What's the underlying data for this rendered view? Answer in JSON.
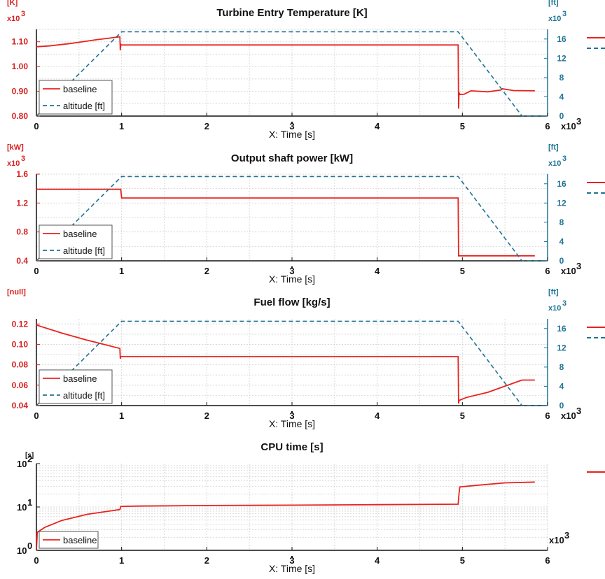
{
  "colors": {
    "baseline": "#e8221e",
    "altitude": "#1f7494",
    "grid": "#d9d9d9",
    "axis": "#111111"
  },
  "chart_data": [
    {
      "type": "line",
      "title": "Turbine Entry Temperature [K]",
      "xlabel": "X: Time [s]",
      "x_multiplier": "x10",
      "x_multiplier_exp": "3",
      "xlim": [
        0,
        6
      ],
      "xticks": [
        "0",
        "1",
        "2",
        "3",
        "4",
        "5",
        "6"
      ],
      "ylabel_unit": "[K]",
      "y_multiplier": "x10",
      "y_multiplier_exp": "3",
      "ylim": [
        0.8,
        1.15
      ],
      "yticks": [
        "0.80",
        "0.90",
        "1.00",
        "1.10"
      ],
      "y_right_unit": "[ft]",
      "y_right_multiplier": "x10",
      "y_right_multiplier_exp": "3",
      "y_right_lim": [
        0,
        18
      ],
      "y_right_ticks": [
        "0",
        "4",
        "8",
        "12",
        "16"
      ],
      "series": [
        {
          "name": "baseline",
          "axis": "left",
          "style": "solid",
          "x": [
            0,
            0.15,
            0.4,
            0.7,
            0.98,
            0.985,
            0.99,
            0.995,
            4.95,
            4.955,
            4.96,
            4.97,
            5.02,
            5.1,
            5.3,
            5.45,
            5.47,
            5.6,
            5.85
          ],
          "y": [
            1.08,
            1.083,
            1.093,
            1.108,
            1.12,
            1.065,
            1.09,
            1.087,
            1.087,
            0.83,
            0.895,
            0.887,
            0.888,
            0.902,
            0.898,
            0.905,
            0.91,
            0.903,
            0.902
          ]
        },
        {
          "name": "altitude [ft]",
          "axis": "right",
          "style": "dashed",
          "x": [
            0,
            1,
            4.95,
            5.7,
            6
          ],
          "y": [
            0,
            17.5,
            17.5,
            0,
            0
          ]
        }
      ],
      "legend": [
        "baseline",
        "altitude [ft]"
      ]
    },
    {
      "type": "line",
      "title": "Output shaft power [kW]",
      "xlabel": "X: Time [s]",
      "x_multiplier": "x10",
      "x_multiplier_exp": "3",
      "xlim": [
        0,
        6
      ],
      "xticks": [
        "0",
        "1",
        "2",
        "3",
        "4",
        "5",
        "6"
      ],
      "ylabel_unit": "[kW]",
      "y_multiplier": "x10",
      "y_multiplier_exp": "3",
      "ylim": [
        0.4,
        1.6
      ],
      "yticks": [
        "0.4",
        "0.8",
        "1.2",
        "1.6"
      ],
      "y_right_unit": "[ft]",
      "y_right_multiplier": "x10",
      "y_right_multiplier_exp": "3",
      "y_right_lim": [
        0,
        18
      ],
      "y_right_ticks": [
        "0",
        "4",
        "8",
        "12",
        "16"
      ],
      "series": [
        {
          "name": "baseline",
          "axis": "left",
          "style": "solid",
          "x": [
            0,
            0.99,
            1.0,
            4.95,
            4.955,
            5.85
          ],
          "y": [
            1.39,
            1.39,
            1.27,
            1.27,
            0.47,
            0.47
          ]
        },
        {
          "name": "altitude [ft]",
          "axis": "right",
          "style": "dashed",
          "x": [
            0,
            1,
            4.95,
            5.7,
            6
          ],
          "y": [
            0,
            17.5,
            17.5,
            0,
            0
          ]
        }
      ],
      "legend": [
        "baseline",
        "altitude [ft]"
      ]
    },
    {
      "type": "line",
      "title": "Fuel flow [kg/s]",
      "xlabel": "X: Time [s]",
      "x_multiplier": "x10",
      "x_multiplier_exp": "3",
      "xlim": [
        0,
        6
      ],
      "xticks": [
        "0",
        "1",
        "2",
        "3",
        "4",
        "5",
        "6"
      ],
      "ylabel_unit": "[null]",
      "y_multiplier": "",
      "y_multiplier_exp": "",
      "ylim": [
        0.04,
        0.125
      ],
      "yticks": [
        "0.04",
        "0.06",
        "0.08",
        "0.10",
        "0.12"
      ],
      "y_right_unit": "[ft]",
      "y_right_multiplier": "x10",
      "y_right_multiplier_exp": "3",
      "y_right_lim": [
        0,
        18
      ],
      "y_right_ticks": [
        "0",
        "4",
        "8",
        "12",
        "16"
      ],
      "series": [
        {
          "name": "baseline",
          "axis": "left",
          "style": "solid",
          "x": [
            0,
            0.3,
            0.6,
            0.98,
            0.985,
            0.99,
            4.95,
            4.955,
            4.96,
            5.05,
            5.3,
            5.6,
            5.7,
            5.85
          ],
          "y": [
            0.119,
            0.111,
            0.104,
            0.096,
            0.086,
            0.088,
            0.088,
            0.042,
            0.045,
            0.048,
            0.053,
            0.062,
            0.065,
            0.065
          ]
        },
        {
          "name": "altitude [ft]",
          "axis": "right",
          "style": "dashed",
          "x": [
            0,
            1,
            4.95,
            5.7,
            6
          ],
          "y": [
            0,
            17.5,
            17.5,
            0,
            0
          ]
        }
      ],
      "legend": [
        "baseline",
        "altitude [ft]"
      ]
    },
    {
      "type": "line",
      "title": "CPU time [s]",
      "xlabel": "X: Time [s]",
      "x_multiplier": "x10",
      "x_multiplier_exp": "3",
      "xlim": [
        0,
        6
      ],
      "xticks": [
        "0",
        "1",
        "2",
        "3",
        "4",
        "5",
        "6"
      ],
      "ylabel_unit": "[s]",
      "y_scale": "log",
      "ylim": [
        1,
        100
      ],
      "yticks": [
        {
          "base": "10",
          "exp": "0"
        },
        {
          "base": "10",
          "exp": "1"
        },
        {
          "base": "10",
          "exp": "2"
        }
      ],
      "series": [
        {
          "name": "baseline",
          "axis": "left",
          "style": "solid",
          "x": [
            0,
            0.01,
            0.1,
            0.3,
            0.6,
            0.98,
            0.99,
            1.2,
            2,
            3,
            4,
            4.95,
            4.96,
            4.97,
            5.2,
            5.5,
            5.85
          ],
          "y": [
            1,
            2.6,
            3.4,
            4.9,
            6.8,
            8.7,
            10.3,
            10.5,
            10.8,
            11.0,
            11.3,
            11.6,
            20,
            29,
            32,
            36,
            37.5
          ]
        }
      ],
      "legend": [
        "baseline"
      ]
    }
  ]
}
